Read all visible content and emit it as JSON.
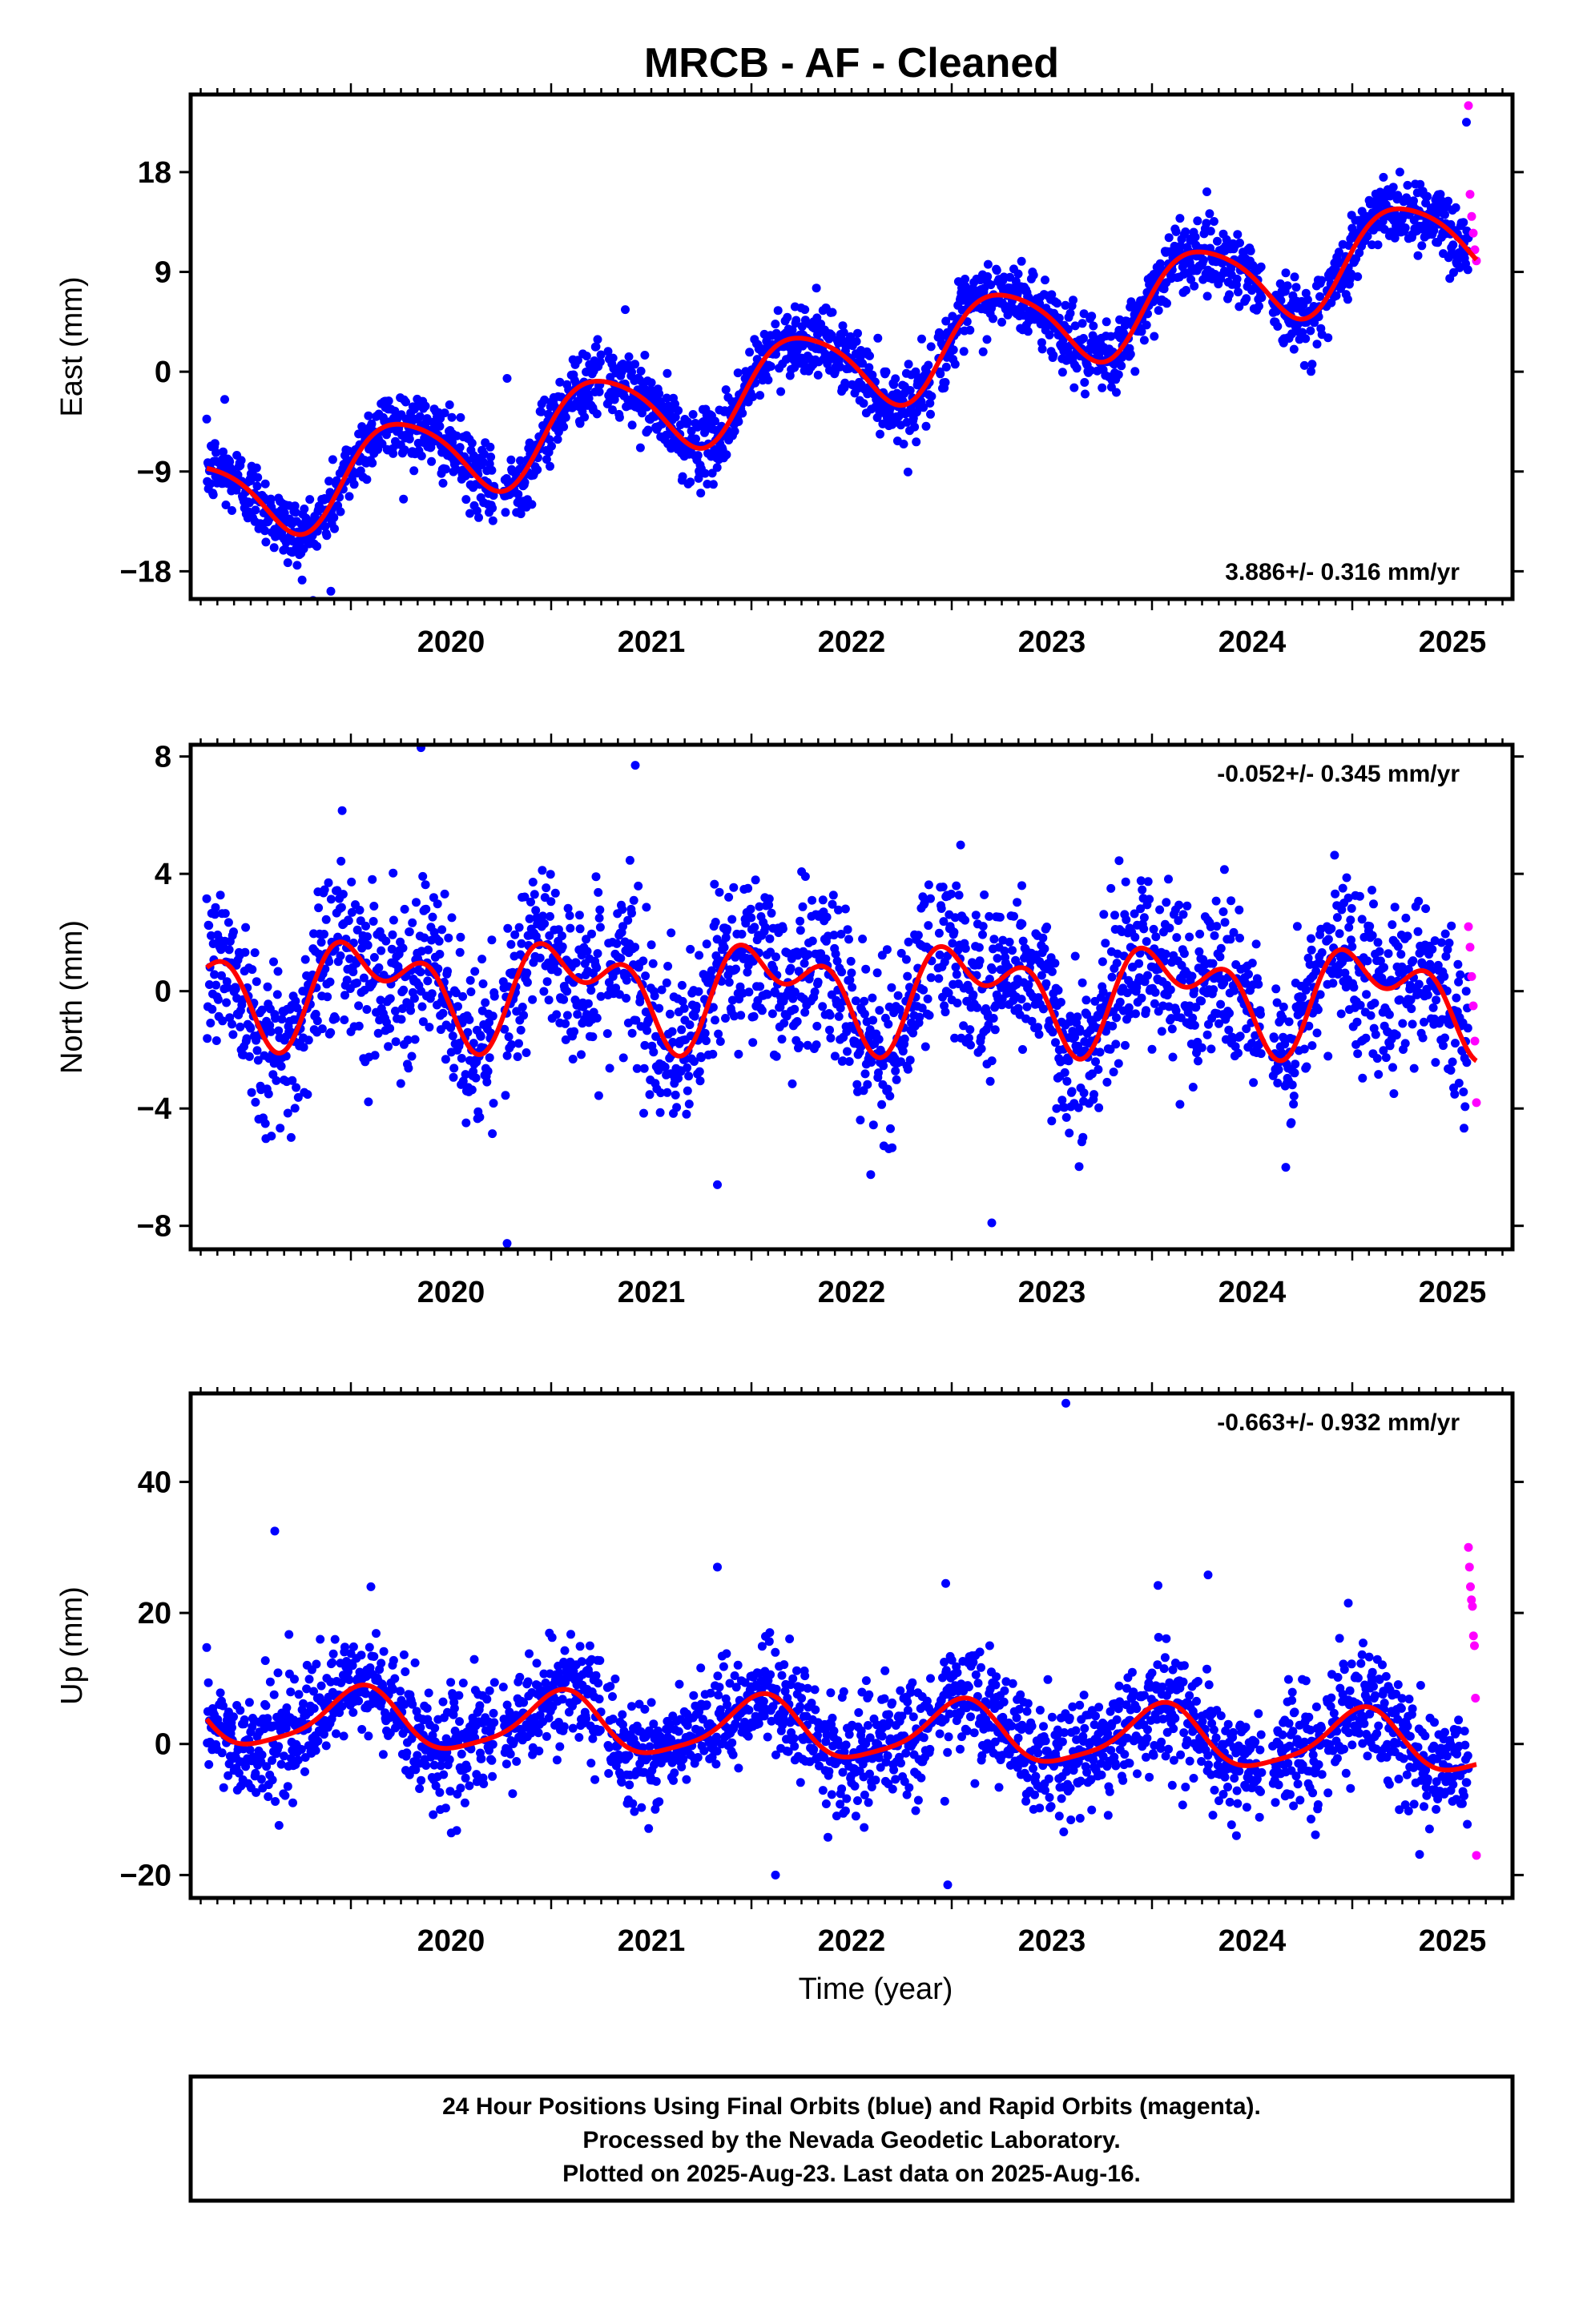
{
  "title": "MRCB  - AF - Cleaned",
  "colors": {
    "final": "#0000ff",
    "rapid": "#ff00ff",
    "model": "#ff0000",
    "frame": "#000000"
  },
  "chart_data": [
    {
      "type": "scatter",
      "ylabel": "East (mm)",
      "xlabel": "",
      "xlim": [
        2019.2,
        2025.8
      ],
      "ylim": [
        -20.5,
        25
      ],
      "yticks": [
        -18,
        -9,
        0,
        9,
        18
      ],
      "xticks": [
        2020,
        2021,
        2022,
        2023,
        2024,
        2025
      ],
      "rate_text": "3.886+/- 0.316 mm/yr",
      "rate_pos": "bottom-right",
      "model": {
        "rate": 3.886,
        "offset": 0.5,
        "annual_amp": 4.0,
        "annual_phase": 0.05,
        "semi_amp": 0.6,
        "semi_phase": 1.0
      },
      "scatter": {
        "noise_sd": 1.6,
        "outliers": [
          [
            2019.9,
            -19.8
          ],
          [
            2019.37,
            -2.5
          ],
          [
            2020.78,
            -0.6
          ],
          [
            2021.37,
            5.6
          ],
          [
            2025.57,
            22.5
          ]
        ]
      },
      "rapid": {
        "x_start": 2025.58,
        "x_end": 2025.62,
        "values": [
          24.0,
          16.0,
          14.0,
          12.5,
          11.0,
          10.0
        ]
      }
    },
    {
      "type": "scatter",
      "ylabel": "North (mm)",
      "xlabel": "",
      "xlim": [
        2019.2,
        2025.8
      ],
      "ylim": [
        -8.8,
        8.4
      ],
      "yticks": [
        -8,
        -4,
        0,
        4,
        8
      ],
      "xticks": [
        2020,
        2021,
        2022,
        2023,
        2024,
        2025
      ],
      "rate_text": "-0.052+/- 0.345 mm/yr",
      "rate_pos": "top-right",
      "model": {
        "rate": -0.052,
        "offset": 0.0,
        "annual_amp": 1.3,
        "annual_phase": 0.9,
        "semi_amp": 1.0,
        "semi_phase": 2.8
      },
      "scatter": {
        "noise_sd": 1.4,
        "outliers": [
          [
            2020.35,
            8.3
          ],
          [
            2020.78,
            -8.6
          ],
          [
            2021.42,
            7.7
          ],
          [
            2021.83,
            -6.6
          ],
          [
            2023.2,
            -7.9
          ],
          [
            2023.35,
            3.6
          ]
        ]
      },
      "rapid": {
        "x_start": 2025.58,
        "x_end": 2025.62,
        "values": [
          2.2,
          1.5,
          0.5,
          -0.5,
          -1.7,
          -3.8
        ]
      }
    },
    {
      "type": "scatter",
      "ylabel": "Up (mm)",
      "xlabel": "Time (year)",
      "xlim": [
        2019.2,
        2025.8
      ],
      "ylim": [
        -23.5,
        53.5
      ],
      "yticks": [
        -20,
        0,
        20,
        40
      ],
      "xticks": [
        2020,
        2021,
        2022,
        2023,
        2024,
        2025
      ],
      "rate_text": "-0.663+/- 0.932 mm/yr",
      "rate_pos": "top-right",
      "model": {
        "rate": -0.663,
        "offset": 2.0,
        "annual_amp": 4.5,
        "annual_phase": 1.3,
        "semi_amp": 1.0,
        "semi_phase": 0.4
      },
      "scatter": {
        "noise_sd": 4.2,
        "outliers": [
          [
            2019.62,
            32.5
          ],
          [
            2020.1,
            24.0
          ],
          [
            2021.83,
            27.0
          ],
          [
            2022.97,
            24.5
          ],
          [
            2023.57,
            52.0
          ],
          [
            2024.03,
            24.2
          ],
          [
            2024.28,
            25.8
          ],
          [
            2024.98,
            21.5
          ],
          [
            2022.98,
            -21.5
          ],
          [
            2022.12,
            -20.0
          ]
        ]
      },
      "rapid": {
        "x_start": 2025.58,
        "x_end": 2025.62,
        "values": [
          30.0,
          27.0,
          24.0,
          22.0,
          21.0,
          16.5,
          15.0,
          7.0,
          -17.0
        ]
      }
    }
  ],
  "footer": {
    "line1": "24 Hour Positions Using Final Orbits (blue) and Rapid Orbits (magenta).",
    "line2": "Processed by the Nevada Geodetic Laboratory.",
    "line3": "Plotted on 2025-Aug-23. Last data on 2025-Aug-16."
  }
}
